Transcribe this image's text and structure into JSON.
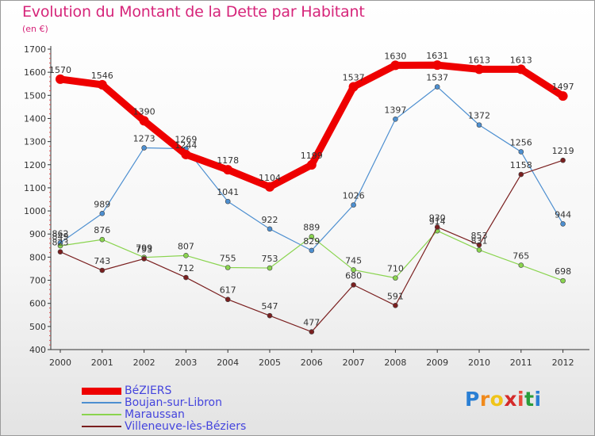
{
  "header": {
    "title": "Evolution du Montant de la Dette par Habitant",
    "subtitle": "(en €)"
  },
  "chart_data": {
    "type": "line",
    "x": [
      "2000",
      "2001",
      "2002",
      "2003",
      "2004",
      "2005",
      "2006",
      "2007",
      "2008",
      "2009",
      "2010",
      "2011",
      "2012"
    ],
    "ylim": [
      400,
      1700
    ],
    "yticks": [
      400,
      500,
      600,
      700,
      800,
      900,
      1000,
      1100,
      1200,
      1300,
      1400,
      1500,
      1600,
      1700
    ],
    "grid": false,
    "legend_position": "bottom-left",
    "series": [
      {
        "name": "BéZIERS",
        "color": "#ee0000",
        "values": [
          1570,
          1546,
          1390,
          1244,
          1178,
          1104,
          1199,
          1537,
          1630,
          1631,
          1613,
          1613,
          1497
        ]
      },
      {
        "name": "Boujan-sur-Libron",
        "color": "#4d8fd0",
        "values": [
          862,
          989,
          1273,
          1269,
          1041,
          922,
          829,
          1026,
          1397,
          1537,
          1372,
          1256,
          944
        ]
      },
      {
        "name": "Maraussan",
        "color": "#8ad44f",
        "values": [
          849,
          876,
          799,
          807,
          755,
          753,
          889,
          745,
          710,
          914,
          831,
          765,
          698
        ]
      },
      {
        "name": "Villeneuve-lès-Béziers",
        "color": "#7a1f1f",
        "values": [
          823,
          743,
          793,
          712,
          617,
          547,
          477,
          680,
          591,
          930,
          853,
          1158,
          1219
        ]
      }
    ]
  },
  "logo": {
    "text": "Proxiti"
  }
}
